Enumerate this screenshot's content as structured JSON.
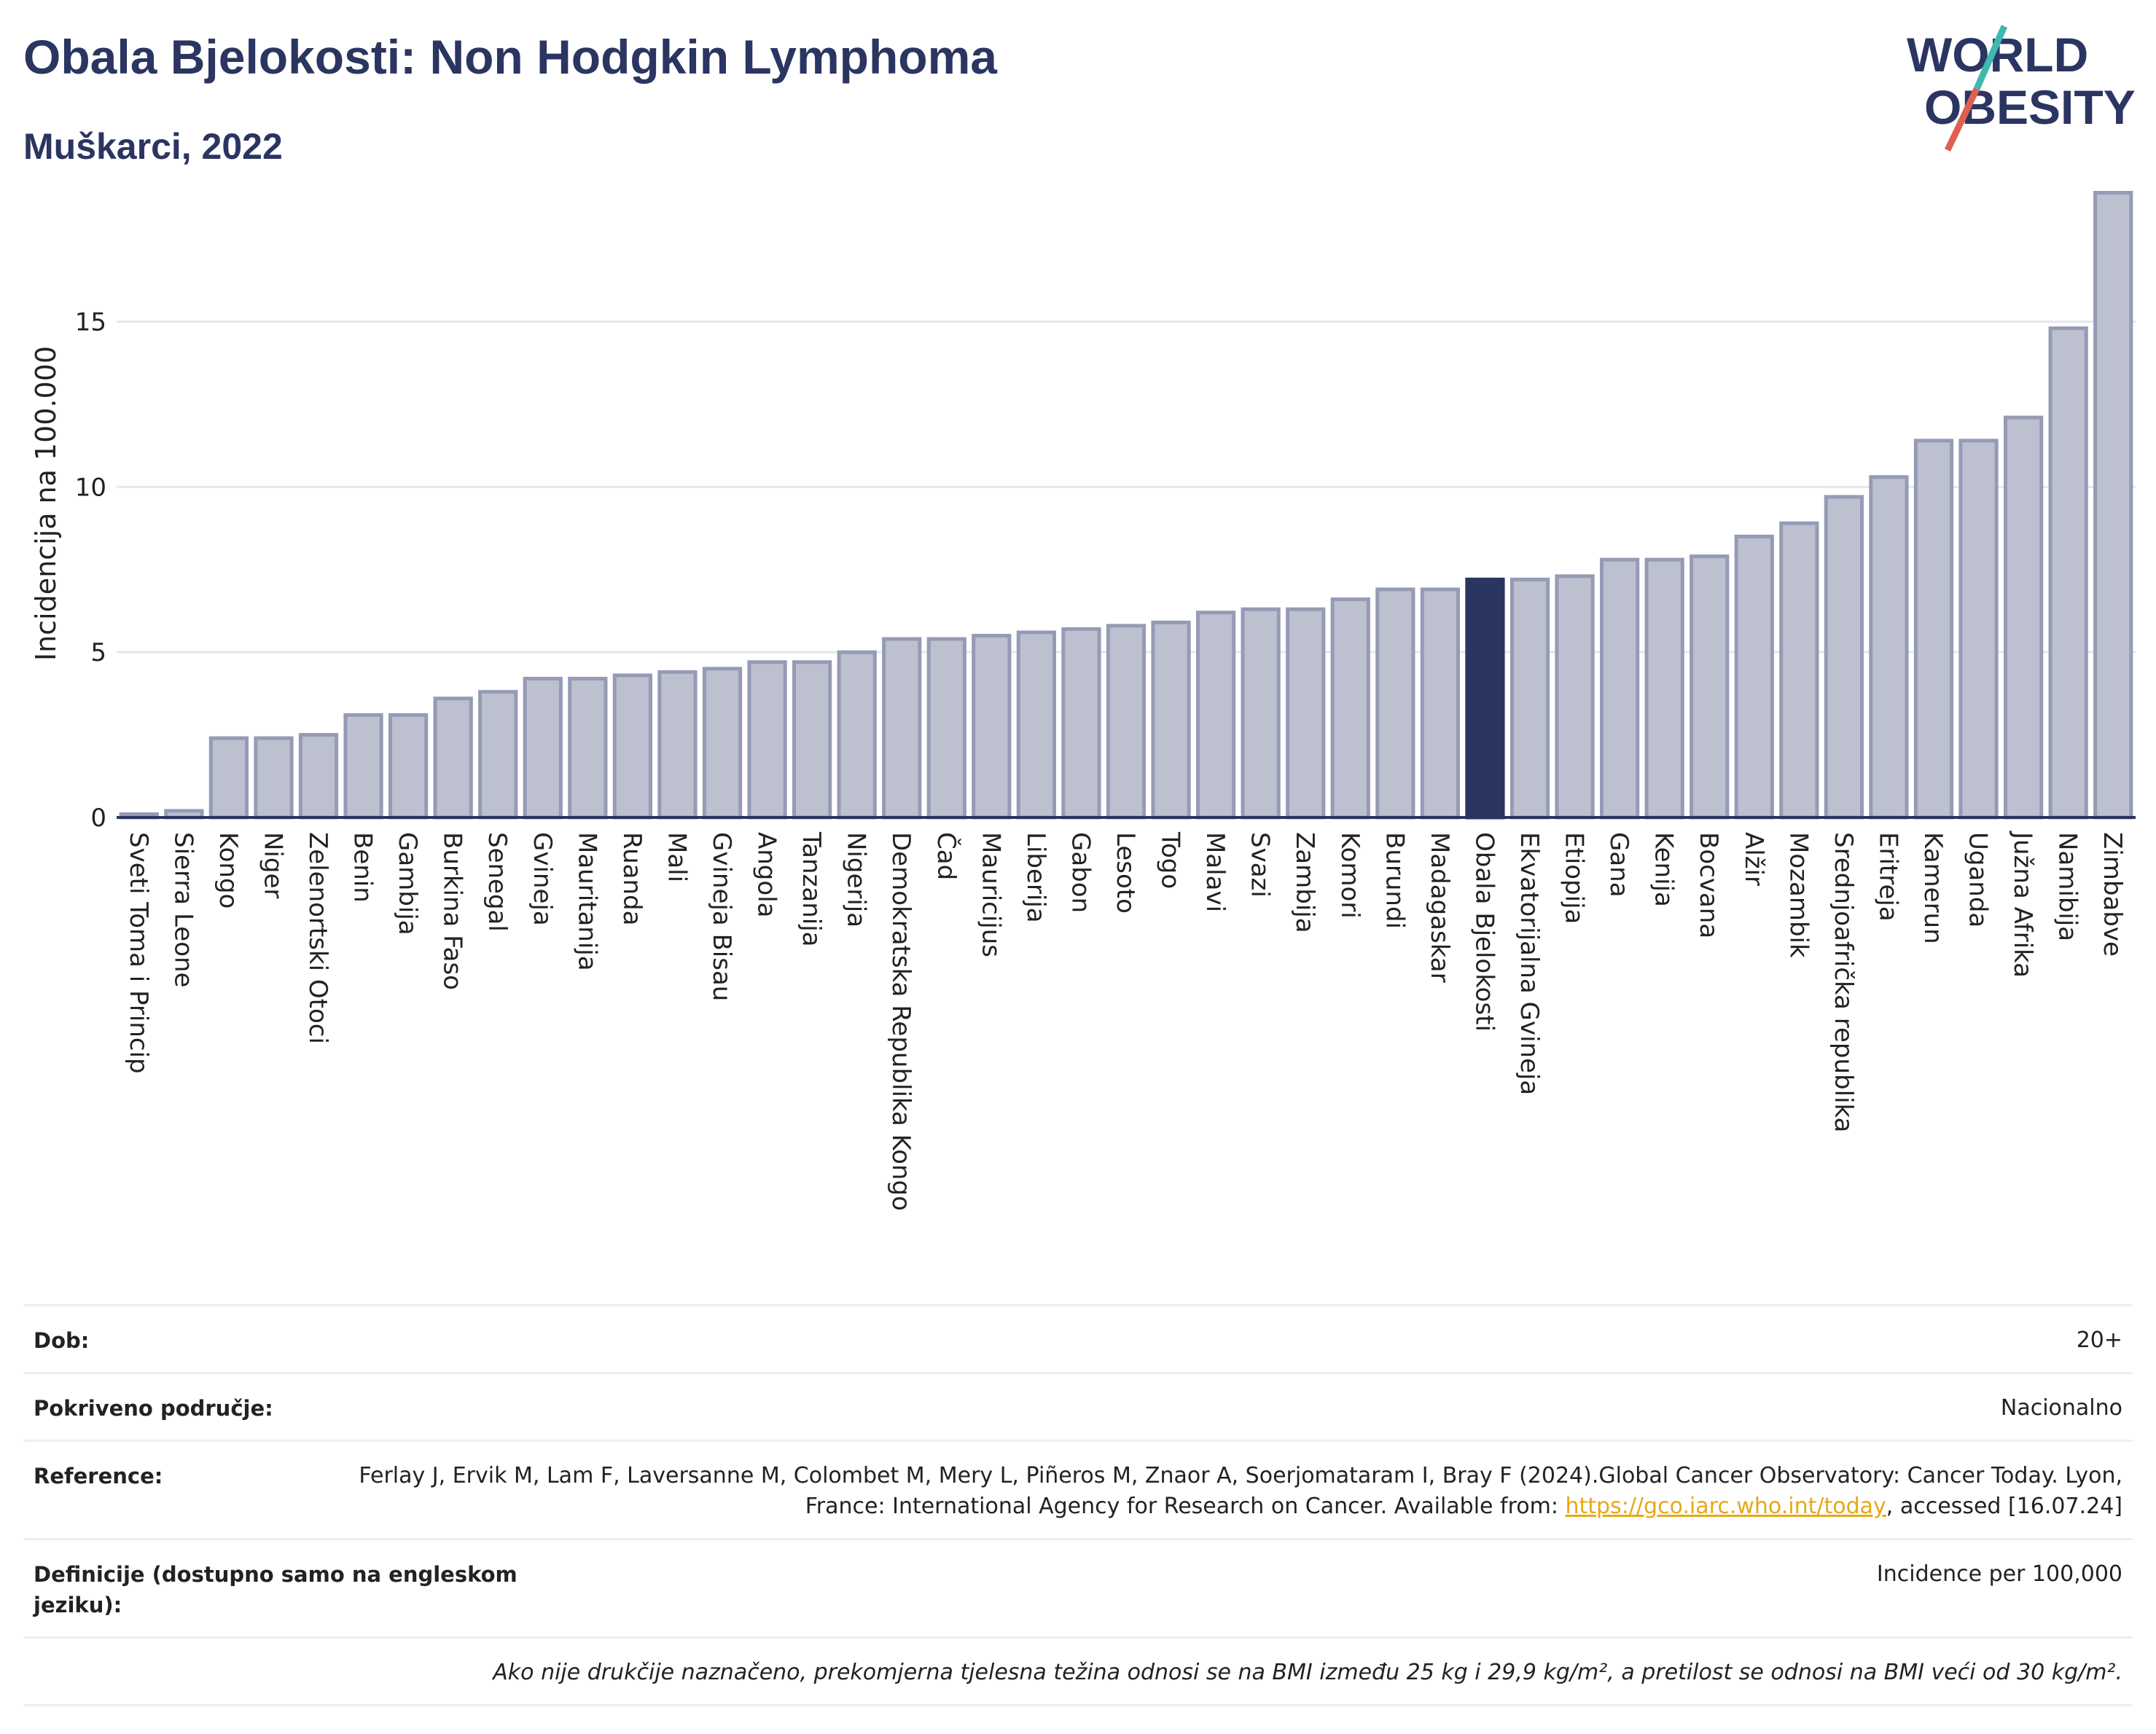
{
  "title": "Obala Bjelokosti: Non Hodgkin Lymphoma",
  "subtitle": "Muškarci, 2022",
  "logo": {
    "line1": "WORLD",
    "line2": "OBESITY",
    "colors": {
      "text": "#2b3561",
      "slash_teal": "#3fb8b0",
      "slash_red": "#e0604f"
    }
  },
  "colors": {
    "bar": "#bcc0cf",
    "bar_border": "#959bb5",
    "highlight": "#2b3561",
    "grid": "#e5e7ee",
    "axis": "#2b3561"
  },
  "chart_data": {
    "type": "bar",
    "ylabel": "Incidencija na 100.000",
    "ylim": [
      0,
      19
    ],
    "yticks": [
      0,
      5,
      10,
      15
    ],
    "highlight": "Obala Bjelokosti",
    "categories": [
      "Sveti Toma i Princip",
      "Sierra Leone",
      "Kongo",
      "Niger",
      "Zelenortski Otoci",
      "Benin",
      "Gambija",
      "Burkina Faso",
      "Senegal",
      "Gvineja",
      "Mauritanija",
      "Ruanda",
      "Mali",
      "Gvineja Bisau",
      "Angola",
      "Tanzanija",
      "Nigerija",
      "Demokratska Republika Kongo",
      "Čad",
      "Mauricijus",
      "Liberija",
      "Gabon",
      "Lesoto",
      "Togo",
      "Malavi",
      "Svazi",
      "Zambija",
      "Komori",
      "Burundi",
      "Madagaskar",
      "Obala Bjelokosti",
      "Ekvatorijalna Gvineja",
      "Etiopija",
      "Gana",
      "Kenija",
      "Bocvana",
      "Alžir",
      "Mozambik",
      "Srednjoafrička republika",
      "Eritreja",
      "Kamerun",
      "Uganda",
      "Južna Afrika",
      "Namibija",
      "Zimbabve"
    ],
    "values": [
      0.1,
      0.2,
      2.4,
      2.4,
      2.5,
      3.1,
      3.1,
      3.6,
      3.8,
      4.2,
      4.2,
      4.3,
      4.4,
      4.5,
      4.7,
      4.7,
      5.0,
      5.4,
      5.4,
      5.5,
      5.6,
      5.7,
      5.8,
      5.9,
      6.2,
      6.3,
      6.3,
      6.6,
      6.9,
      6.9,
      7.2,
      7.2,
      7.3,
      7.8,
      7.8,
      7.9,
      8.5,
      8.9,
      9.7,
      10.3,
      11.4,
      11.4,
      12.1,
      14.8,
      18.9
    ]
  },
  "info": {
    "age_label": "Dob:",
    "age_value": "20+",
    "coverage_label": "Pokriveno područje:",
    "coverage_value": "Nacionalno",
    "reference_label": "Reference:",
    "reference_text": "Ferlay J, Ervik M, Lam F, Laversanne M, Colombet M, Mery L, Piñeros M, Znaor A, Soerjomataram I, Bray F (2024).Global Cancer Observatory: Cancer Today. Lyon, France: International Agency for Research on Cancer. Available from: ",
    "reference_link": "https://gco.iarc.who.int/today",
    "reference_tail": ", accessed [16.07.24]",
    "definitions_label": "Definicije (dostupno samo na engleskom jeziku):",
    "definitions_value": "Incidence per 100,000",
    "note": "Ako nije drukčije naznačeno, prekomjerna tjelesna težina odnosi se na BMI između 25 kg i 29,9 kg/m², a pretilost se odnosi na BMI veći od 30 kg/m²."
  }
}
